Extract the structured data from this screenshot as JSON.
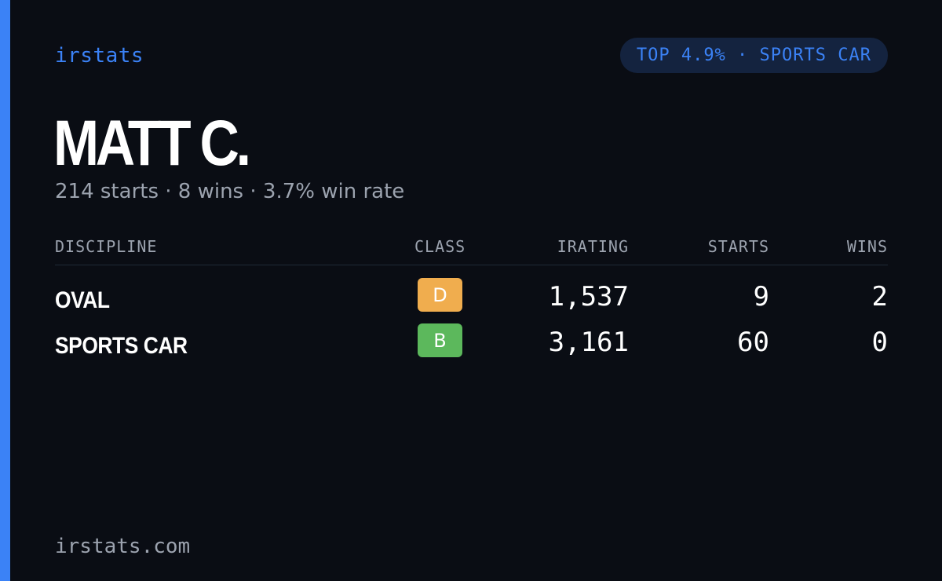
{
  "brand": {
    "label": "irstats",
    "accent_color": "#3b82f6"
  },
  "rank_badge": {
    "label": "TOP 4.9% · SPORTS CAR"
  },
  "player": {
    "name": "MATT C.",
    "summary": "214 starts · 8 wins · 3.7% win rate"
  },
  "table": {
    "headers": {
      "discipline": "DISCIPLINE",
      "class": "CLASS",
      "irating": "IRATING",
      "starts": "STARTS",
      "wins": "WINS"
    },
    "rows": [
      {
        "discipline": "OVAL",
        "class": "D",
        "class_color": "#f0ad4e",
        "irating": "1,537",
        "starts": "9",
        "wins": "2"
      },
      {
        "discipline": "SPORTS CAR",
        "class": "B",
        "class_color": "#5cb85c",
        "irating": "3,161",
        "starts": "60",
        "wins": "0"
      }
    ]
  },
  "footer": {
    "site": "irstats.com"
  }
}
